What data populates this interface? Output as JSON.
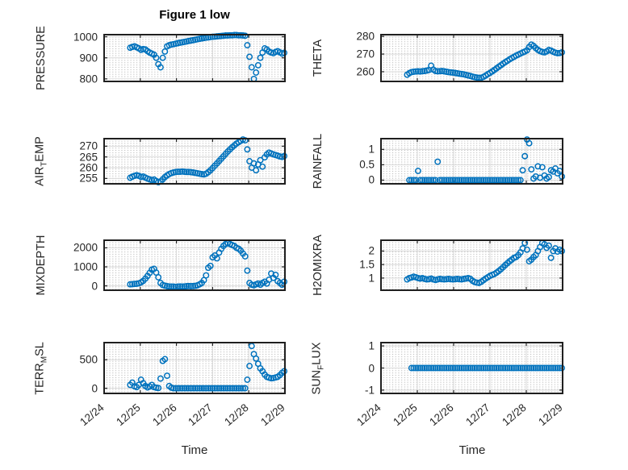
{
  "figure": {
    "title": "Figure 1 low",
    "marker_color": "#0072BD",
    "axis_color": "#262626",
    "grid_color": "#d9d9d9",
    "background": "#ffffff"
  },
  "chart_data": {
    "type": "scatter",
    "title": "Figure 1 low",
    "xlabel": "Time",
    "grid": "major solid + dotted minor",
    "marker": "open circle",
    "marker_color": "#0072BD",
    "x_tick_labels": [
      "12/24",
      "12/25",
      "12/26",
      "12/27",
      "12/28",
      "12/29"
    ],
    "x_tick_positions_days": [
      0,
      1,
      2,
      3,
      4,
      5
    ],
    "xlim_days": [
      0,
      5
    ],
    "x_unit": "days since 12/24",
    "x": [
      0.72,
      0.78,
      0.84,
      0.9,
      0.96,
      1.02,
      1.08,
      1.14,
      1.2,
      1.26,
      1.32,
      1.38,
      1.44,
      1.5,
      1.56,
      1.62,
      1.68,
      1.74,
      1.8,
      1.86,
      1.92,
      1.98,
      2.04,
      2.1,
      2.16,
      2.22,
      2.28,
      2.34,
      2.4,
      2.46,
      2.52,
      2.58,
      2.64,
      2.7,
      2.76,
      2.82,
      2.88,
      2.94,
      3.0,
      3.06,
      3.12,
      3.18,
      3.24,
      3.3,
      3.36,
      3.42,
      3.48,
      3.54,
      3.6,
      3.66,
      3.72,
      3.78,
      3.84,
      3.9,
      3.96,
      4.02,
      4.08,
      4.14,
      4.2,
      4.26,
      4.32,
      4.38,
      4.44,
      4.5,
      4.56,
      4.62,
      4.68,
      4.74,
      4.8,
      4.86,
      4.92,
      4.98
    ],
    "subplots": [
      {
        "name": "PRESSURE",
        "ylabel_parts": [
          {
            "t": "PRESSURE"
          }
        ],
        "yticks": [
          800,
          900,
          1000
        ],
        "ylim": [
          788,
          1010
        ],
        "values": [
          948,
          952,
          955,
          950,
          945,
          938,
          942,
          940,
          932,
          925,
          920,
          915,
          900,
          870,
          855,
          900,
          930,
          955,
          960,
          963,
          965,
          967,
          970,
          972,
          974,
          976,
          978,
          980,
          982,
          984,
          986,
          988,
          990,
          992,
          994,
          996,
          997,
          999,
          1000,
          1001,
          1002,
          1003,
          1004,
          1005,
          1006,
          1006,
          1007,
          1007,
          1008,
          1008,
          1007,
          1007,
          1006,
          1005,
          960,
          905,
          855,
          800,
          830,
          865,
          900,
          925,
          945,
          940,
          930,
          925,
          922,
          928,
          932,
          926,
          920,
          924
        ]
      },
      {
        "name": "THETA",
        "ylabel_parts": [
          {
            "t": "THETA"
          }
        ],
        "yticks": [
          260,
          270,
          280
        ],
        "ylim": [
          254.5,
          281
        ],
        "values": [
          258.3,
          259.2,
          259.8,
          260,
          260.1,
          260.2,
          260.1,
          260.3,
          260.4,
          260.6,
          261,
          263.4,
          261.2,
          260.4,
          260.2,
          260.3,
          260.4,
          260.2,
          260,
          259.8,
          259.6,
          259.5,
          259.3,
          259.1,
          258.9,
          258.7,
          258.5,
          258.2,
          257.9,
          257.6,
          257.2,
          256.9,
          256.7,
          256.5,
          256.6,
          257.1,
          257.8,
          258.6,
          259.3,
          260.1,
          261,
          261.9,
          262.8,
          263.7,
          264.6,
          265.4,
          266.2,
          267,
          267.7,
          268.4,
          269.1,
          269.7,
          270.3,
          270.9,
          271.4,
          272.2,
          274,
          275.4,
          274.6,
          273.4,
          272.4,
          271.7,
          271.2,
          271,
          271.5,
          272.3,
          272,
          271.3,
          270.8,
          270.5,
          270.6,
          271
        ]
      },
      {
        "name": "AIR_TEMP",
        "ylabel_parts": [
          {
            "t": "AIR"
          },
          {
            "t": "T",
            "sub": true
          },
          {
            "t": "EMP"
          }
        ],
        "yticks": [
          255,
          260,
          265,
          270
        ],
        "ylim": [
          252.5,
          273.5
        ],
        "values": [
          255.3,
          255.8,
          256.2,
          256.5,
          256.2,
          255.7,
          255.9,
          255.4,
          254.9,
          254.6,
          254.2,
          254.5,
          253.8,
          253.2,
          253.6,
          254.6,
          255.6,
          256.4,
          257,
          257.5,
          257.8,
          258,
          258.1,
          258.1,
          258.2,
          258.1,
          258,
          258,
          257.9,
          257.8,
          257.6,
          257.4,
          257.2,
          257,
          256.9,
          257.2,
          257.9,
          258.8,
          259.8,
          260.9,
          262,
          263.1,
          264.2,
          265.3,
          266.4,
          267.5,
          268.5,
          269.5,
          270.4,
          271.2,
          271.9,
          272.5,
          273.1,
          272.7,
          268.5,
          263,
          260,
          262,
          258.8,
          261.5,
          263.5,
          260.5,
          264.8,
          266.2,
          267,
          266.6,
          266.2,
          265.9,
          265.6,
          265.2,
          265,
          265.4
        ]
      },
      {
        "name": "RAINFALL",
        "ylabel_parts": [
          {
            "t": "RAINFALL"
          }
        ],
        "yticks": [
          0,
          0.5,
          1
        ],
        "ylim": [
          -0.12,
          1.35
        ],
        "values": [
          null,
          0,
          0,
          0,
          0,
          0.3,
          0,
          0,
          0,
          0,
          0,
          0,
          0,
          0,
          0.6,
          0,
          0,
          0,
          0,
          0,
          0,
          0,
          0,
          0,
          0,
          0,
          0,
          0,
          0,
          0,
          0,
          0,
          0,
          0,
          0,
          0,
          0,
          0,
          0,
          0,
          0,
          0,
          0,
          0,
          0,
          0,
          0,
          0,
          0,
          0,
          0,
          0,
          0,
          0.32,
          0.78,
          1.32,
          1.2,
          0.35,
          0.05,
          0.12,
          0.45,
          0.08,
          0.42,
          0.15,
          0.05,
          0.1,
          0.32,
          0.28,
          0.38,
          0.22,
          0.3,
          0.12
        ]
      },
      {
        "name": "MIXDEPTH",
        "ylabel_parts": [
          {
            "t": "MIXDEPTH"
          }
        ],
        "yticks": [
          0,
          1000,
          2000
        ],
        "ylim": [
          -230,
          2400
        ],
        "values": [
          80,
          90,
          100,
          110,
          130,
          180,
          260,
          380,
          520,
          680,
          850,
          900,
          700,
          450,
          150,
          40,
          10,
          -20,
          -30,
          -40,
          -40,
          -50,
          -40,
          -30,
          -40,
          -30,
          -20,
          -10,
          -20,
          -10,
          0,
          30,
          80,
          150,
          300,
          550,
          950,
          1050,
          1500,
          1600,
          1450,
          1750,
          1950,
          2100,
          2200,
          2250,
          2200,
          2150,
          2100,
          2000,
          1950,
          1850,
          1700,
          1550,
          800,
          150,
          60,
          30,
          80,
          120,
          60,
          150,
          220,
          120,
          320,
          650,
          420,
          580,
          250,
          150,
          60,
          220
        ]
      },
      {
        "name": "H2OMIXRA",
        "ylabel_parts": [
          {
            "t": "H2OMIXRA"
          }
        ],
        "yticks": [
          1,
          1.5,
          2
        ],
        "ylim": [
          0.55,
          2.4
        ],
        "values": [
          0.95,
          1,
          1.02,
          1.05,
          1.03,
          1,
          0.98,
          1,
          0.97,
          0.95,
          0.96,
          0.98,
          0.95,
          0.93,
          0.95,
          0.97,
          0.96,
          0.95,
          0.96,
          0.97,
          0.96,
          0.95,
          0.96,
          0.97,
          0.96,
          0.95,
          0.97,
          0.98,
          1,
          0.97,
          0.9,
          0.85,
          0.83,
          0.82,
          0.86,
          0.92,
          0.98,
          1.03,
          1.08,
          1.12,
          1.15,
          1.2,
          1.26,
          1.33,
          1.4,
          1.48,
          1.55,
          1.62,
          1.68,
          1.75,
          1.78,
          1.85,
          1.95,
          2.1,
          2.3,
          2.05,
          1.62,
          1.68,
          1.78,
          1.85,
          2,
          2.15,
          2.3,
          2.25,
          2.12,
          2.2,
          1.75,
          2,
          2.1,
          1.98,
          2.05,
          2
        ]
      },
      {
        "name": "TERR_MSL",
        "ylabel_parts": [
          {
            "t": "TERR"
          },
          {
            "t": "M",
            "sub": true
          },
          {
            "t": "SL"
          }
        ],
        "yticks": [
          0,
          500
        ],
        "ylim": [
          -90,
          800
        ],
        "values": [
          60,
          100,
          35,
          20,
          60,
          150,
          90,
          40,
          15,
          30,
          60,
          20,
          10,
          5,
          170,
          480,
          510,
          220,
          40,
          10,
          0,
          0,
          0,
          0,
          0,
          0,
          0,
          0,
          0,
          0,
          0,
          0,
          0,
          0,
          0,
          0,
          0,
          0,
          0,
          0,
          0,
          0,
          0,
          0,
          0,
          0,
          0,
          0,
          0,
          0,
          0,
          0,
          0,
          0,
          150,
          390,
          740,
          600,
          520,
          430,
          350,
          300,
          240,
          200,
          185,
          175,
          180,
          190,
          200,
          230,
          270,
          300
        ]
      },
      {
        "name": "SUN_FLUX",
        "ylabel_parts": [
          {
            "t": "SUN"
          },
          {
            "t": "F",
            "sub": true
          },
          {
            "t": "LUX"
          }
        ],
        "yticks": [
          -1,
          0,
          1
        ],
        "ylim": [
          -1.15,
          1.15
        ],
        "values": [
          null,
          null,
          0,
          0,
          0,
          0,
          0,
          0,
          0,
          0,
          0,
          0,
          0,
          0,
          0,
          0,
          0,
          0,
          0,
          0,
          0,
          0,
          0,
          0,
          0,
          0,
          0,
          0,
          0,
          0,
          0,
          0,
          0,
          0,
          0,
          0,
          0,
          0,
          0,
          0,
          0,
          0,
          0,
          0,
          0,
          0,
          0,
          0,
          0,
          0,
          0,
          0,
          0,
          0,
          0,
          0,
          0,
          0,
          0,
          0,
          0,
          0,
          0,
          0,
          0,
          0,
          0,
          0,
          0,
          0,
          0,
          0
        ]
      }
    ]
  }
}
